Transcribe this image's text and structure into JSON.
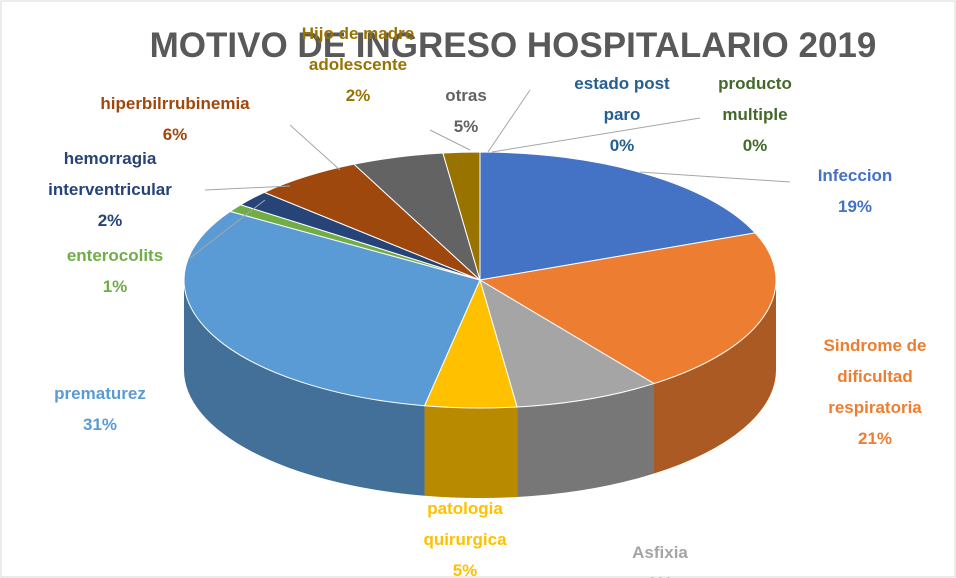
{
  "chart_data": {
    "type": "pie3d",
    "title": "MOTIVO DE INGRESO HOSPITALARIO 2019",
    "categories": [
      "Infeccion",
      "Sindrome de dificultad respiratoria",
      "Asfixia",
      "patologia quirurgica",
      "prematurez",
      "enterocolits",
      "hemorragia interventricular",
      "hiperbilrrubinemia",
      "otras",
      "Hijo de madre adolescente",
      "estado post paro",
      "producto multiple"
    ],
    "values": [
      19,
      21,
      8,
      5,
      31,
      1,
      2,
      6,
      5,
      2,
      0,
      0
    ],
    "value_labels": [
      "19%",
      "21%",
      "8%",
      "5%",
      "31%",
      "1%",
      "2%",
      "6%",
      "5%",
      "2%",
      "0%",
      "0%"
    ],
    "colors": [
      "#4472c4",
      "#ed7d31",
      "#a5a5a5",
      "#ffc000",
      "#5b9bd5",
      "#70ad47",
      "#264478",
      "#9e480e",
      "#636363",
      "#997300",
      "#255e91",
      "#43682b"
    ]
  }
}
